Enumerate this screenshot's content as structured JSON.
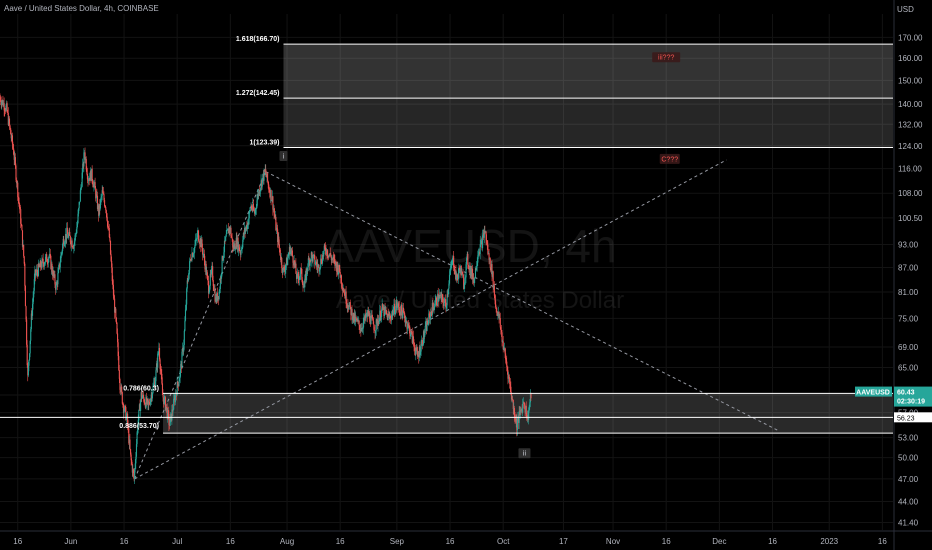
{
  "header": {
    "title": "Aave / United States Dollar, 4h, COINBASE",
    "currency": "USD"
  },
  "watermark": {
    "main": "AAVEUSD, 4h",
    "sub": "Aave / United States Dollar"
  },
  "colors": {
    "up": "#26a69a",
    "down": "#ef5350",
    "background": "#000000",
    "accent": "#26a69a"
  },
  "chart_data": {
    "type": "candlestick",
    "title": "Aave / United States Dollar, 4h, COINBASE",
    "y_axis": {
      "scale": "log",
      "ticks": [
        "170.00",
        "160.00",
        "150.00",
        "140.00",
        "132.00",
        "124.00",
        "116.00",
        "108.00",
        "100.50",
        "93.00",
        "87.00",
        "81.00",
        "75.00",
        "69.00",
        "65.00",
        "60.00",
        "57.00",
        "53.00",
        "50.00",
        "47.00",
        "44.00",
        "41.40"
      ],
      "tick_values": [
        170,
        160,
        150,
        140,
        132,
        124,
        116,
        108,
        100.5,
        93,
        87,
        81,
        75,
        69,
        65,
        60,
        57,
        53,
        50,
        47,
        44,
        41.4
      ],
      "ylim": [
        40.5,
        182
      ]
    },
    "x_axis": {
      "ticks": [
        "16",
        "Jun",
        "16",
        "Jul",
        "16",
        "Aug",
        "16",
        "Sep",
        "16",
        "Oct",
        "17",
        "Nov",
        "16",
        "Dec",
        "16",
        "2023",
        "16"
      ],
      "tick_days": [
        -15,
        0,
        15,
        30,
        45,
        61,
        76,
        92,
        107,
        122,
        139,
        153,
        168,
        183,
        198,
        214,
        229
      ],
      "range_days": [
        -20,
        232
      ]
    },
    "price_path": [
      [
        -20,
        143
      ],
      [
        -18,
        138
      ],
      [
        -16,
        122
      ],
      [
        -14,
        100
      ],
      [
        -13,
        88
      ],
      [
        -12,
        63
      ],
      [
        -11,
        75
      ],
      [
        -10,
        85
      ],
      [
        -8,
        88
      ],
      [
        -6,
        90
      ],
      [
        -4,
        82
      ],
      [
        -2,
        94
      ],
      [
        -1,
        96
      ],
      [
        1,
        93
      ],
      [
        2,
        99
      ],
      [
        3,
        110
      ],
      [
        4,
        122
      ],
      [
        5,
        113
      ],
      [
        6,
        114
      ],
      [
        7,
        109
      ],
      [
        8,
        102
      ],
      [
        9,
        108
      ],
      [
        10,
        104
      ],
      [
        11,
        95
      ],
      [
        12,
        82
      ],
      [
        13,
        73
      ],
      [
        14,
        62
      ],
      [
        15,
        58
      ],
      [
        16,
        56
      ],
      [
        17,
        50
      ],
      [
        18,
        47
      ],
      [
        19,
        55
      ],
      [
        20,
        60
      ],
      [
        22,
        58
      ],
      [
        24,
        63
      ],
      [
        25,
        69
      ],
      [
        26,
        60
      ],
      [
        27,
        58
      ],
      [
        28,
        55
      ],
      [
        29,
        58
      ],
      [
        30,
        61
      ],
      [
        31,
        64
      ],
      [
        32,
        70
      ],
      [
        33,
        83
      ],
      [
        34,
        90
      ],
      [
        35,
        92
      ],
      [
        36,
        96
      ],
      [
        37,
        93
      ],
      [
        38,
        88
      ],
      [
        39,
        82
      ],
      [
        40,
        86
      ],
      [
        41,
        79
      ],
      [
        42,
        81
      ],
      [
        43,
        90
      ],
      [
        44,
        95
      ],
      [
        45,
        98
      ],
      [
        46,
        92
      ],
      [
        47,
        94
      ],
      [
        48,
        91
      ],
      [
        49,
        96
      ],
      [
        50,
        99
      ],
      [
        51,
        104
      ],
      [
        52,
        102
      ],
      [
        53,
        108
      ],
      [
        54,
        112
      ],
      [
        55,
        115
      ],
      [
        56,
        110
      ],
      [
        57,
        106
      ],
      [
        58,
        98
      ],
      [
        59,
        92
      ],
      [
        60,
        86
      ],
      [
        61,
        88
      ],
      [
        62,
        92
      ],
      [
        63,
        89
      ],
      [
        64,
        84
      ],
      [
        65,
        86
      ],
      [
        66,
        82
      ],
      [
        67,
        88
      ],
      [
        68,
        90
      ],
      [
        70,
        87
      ],
      [
        72,
        92
      ],
      [
        74,
        89
      ],
      [
        76,
        86
      ],
      [
        77,
        82
      ],
      [
        78,
        79
      ],
      [
        79,
        77
      ],
      [
        80,
        75
      ],
      [
        82,
        73
      ],
      [
        84,
        76
      ],
      [
        86,
        73
      ],
      [
        88,
        77
      ],
      [
        90,
        75
      ],
      [
        92,
        78
      ],
      [
        94,
        76
      ],
      [
        96,
        72
      ],
      [
        98,
        67
      ],
      [
        100,
        72
      ],
      [
        102,
        77
      ],
      [
        104,
        80
      ],
      [
        106,
        78
      ],
      [
        107,
        85
      ],
      [
        108,
        89
      ],
      [
        109,
        84
      ],
      [
        110,
        87
      ],
      [
        111,
        83
      ],
      [
        112,
        89
      ],
      [
        113,
        86
      ],
      [
        114,
        84
      ],
      [
        115,
        91
      ],
      [
        116,
        93
      ],
      [
        117,
        97
      ],
      [
        118,
        90
      ],
      [
        119,
        86
      ],
      [
        120,
        78
      ],
      [
        121,
        75
      ],
      [
        122,
        70
      ],
      [
        123,
        66
      ],
      [
        124,
        62
      ],
      [
        125,
        58
      ],
      [
        126,
        55
      ],
      [
        127,
        57
      ],
      [
        128,
        59
      ],
      [
        129,
        56
      ],
      [
        130,
        60
      ]
    ],
    "annotations": {
      "fib_levels": [
        {
          "label": "1.618(166.70)",
          "value": 166.7
        },
        {
          "label": "1.272(142.45)",
          "value": 142.45
        },
        {
          "label": "1(123.39)",
          "value": 123.39
        },
        {
          "label": "0.786(60.3)",
          "value": 60.3
        },
        {
          "label": "0.886(53.70)",
          "value": 53.7
        }
      ],
      "white_lines": [
        166.7,
        142.45,
        123.39,
        60.3,
        56.23,
        53.7
      ],
      "wave_labels": [
        {
          "text": "i",
          "x_day": 60,
          "y": 120,
          "style": "box"
        },
        {
          "text": "iii???",
          "x_day": 168,
          "y": 160,
          "style": "red"
        },
        {
          "text": "C???",
          "x_day": 169,
          "y": 119,
          "style": "red"
        },
        {
          "text": "ii",
          "x_day": 128,
          "y": 50.5,
          "style": "box"
        }
      ],
      "dotted_lines": [
        [
          [
            18,
            47
          ],
          [
            55,
            115
          ]
        ],
        [
          [
            55,
            115
          ],
          [
            200,
            54
          ]
        ],
        [
          [
            18,
            47
          ],
          [
            185,
            119
          ]
        ]
      ]
    },
    "last_price": {
      "symbol": "AAVEUSD",
      "price": "60.43",
      "countdown": "02:30:19",
      "value": 60.43
    },
    "secondary_price": {
      "price": "56.23",
      "value": 56.23
    }
  }
}
